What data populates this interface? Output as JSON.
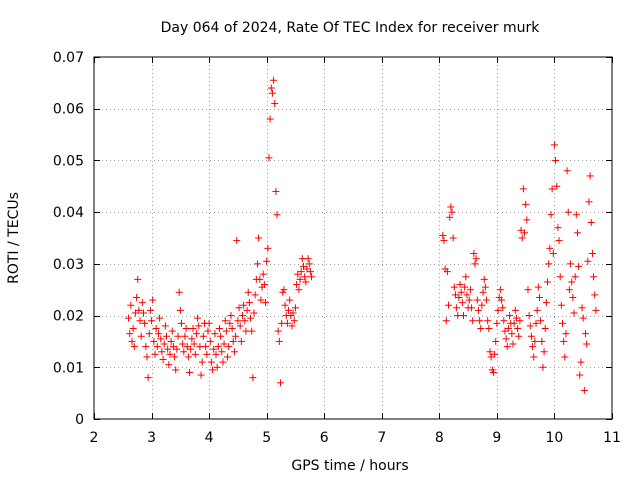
{
  "chart_data": {
    "type": "scatter",
    "title": "Day 064 of 2024, Rate Of TEC Index for receiver murk",
    "xlabel": "GPS time / hours",
    "ylabel": "ROTI / TECUs",
    "xlim": [
      2,
      11
    ],
    "ylim": [
      0,
      0.07
    ],
    "xticks": [
      2,
      3,
      4,
      5,
      6,
      7,
      8,
      9,
      10,
      11
    ],
    "xtick_labels": [
      "2",
      "3",
      "4",
      "5",
      "6",
      "7",
      "8",
      "9",
      "10",
      "11"
    ],
    "yticks": [
      0,
      0.01,
      0.02,
      0.03,
      0.04,
      0.05,
      0.06,
      0.07
    ],
    "ytick_labels": [
      "0",
      "0.01",
      "0.02",
      "0.03",
      "0.04",
      "0.05",
      "0.06",
      "0.07"
    ],
    "grid": true,
    "marker": "plus",
    "color": "#ff0000",
    "series": [
      {
        "name": "ROTI",
        "points": [
          [
            2.6,
            0.0195
          ],
          [
            2.62,
            0.0165
          ],
          [
            2.64,
            0.022
          ],
          [
            2.66,
            0.015
          ],
          [
            2.68,
            0.0175
          ],
          [
            2.7,
            0.014
          ],
          [
            2.72,
            0.0205
          ],
          [
            2.74,
            0.0235
          ],
          [
            2.76,
            0.027
          ],
          [
            2.78,
            0.021
          ],
          [
            2.8,
            0.019
          ],
          [
            2.82,
            0.016
          ],
          [
            2.84,
            0.0225
          ],
          [
            2.86,
            0.0205
          ],
          [
            2.88,
            0.0185
          ],
          [
            2.9,
            0.014
          ],
          [
            2.92,
            0.012
          ],
          [
            2.94,
            0.008
          ],
          [
            2.96,
            0.0165
          ],
          [
            2.98,
            0.021
          ],
          [
            3.0,
            0.019
          ],
          [
            3.02,
            0.023
          ],
          [
            3.04,
            0.015
          ],
          [
            3.06,
            0.0125
          ],
          [
            3.08,
            0.0175
          ],
          [
            3.1,
            0.014
          ],
          [
            3.12,
            0.0165
          ],
          [
            3.14,
            0.0195
          ],
          [
            3.16,
            0.0155
          ],
          [
            3.18,
            0.013
          ],
          [
            3.2,
            0.0115
          ],
          [
            3.22,
            0.0145
          ],
          [
            3.24,
            0.018
          ],
          [
            3.26,
            0.016
          ],
          [
            3.28,
            0.0135
          ],
          [
            3.3,
            0.0105
          ],
          [
            3.32,
            0.0125
          ],
          [
            3.34,
            0.015
          ],
          [
            3.36,
            0.017
          ],
          [
            3.38,
            0.014
          ],
          [
            3.4,
            0.012
          ],
          [
            3.42,
            0.0095
          ],
          [
            3.44,
            0.0135
          ],
          [
            3.46,
            0.016
          ],
          [
            3.48,
            0.0245
          ],
          [
            3.5,
            0.021
          ],
          [
            3.52,
            0.0185
          ],
          [
            3.54,
            0.0145
          ],
          [
            3.56,
            0.013
          ],
          [
            3.58,
            0.016
          ],
          [
            3.6,
            0.0175
          ],
          [
            3.62,
            0.014
          ],
          [
            3.64,
            0.012
          ],
          [
            3.66,
            0.009
          ],
          [
            3.68,
            0.0135
          ],
          [
            3.7,
            0.0155
          ],
          [
            3.72,
            0.0175
          ],
          [
            3.74,
            0.0145
          ],
          [
            3.76,
            0.0125
          ],
          [
            3.78,
            0.0165
          ],
          [
            3.8,
            0.0195
          ],
          [
            3.82,
            0.018
          ],
          [
            3.84,
            0.014
          ],
          [
            3.86,
            0.0085
          ],
          [
            3.88,
            0.011
          ],
          [
            3.9,
            0.016
          ],
          [
            3.92,
            0.0185
          ],
          [
            3.94,
            0.014
          ],
          [
            3.96,
            0.0125
          ],
          [
            3.98,
            0.017
          ],
          [
            4.0,
            0.0185
          ],
          [
            4.02,
            0.015
          ],
          [
            4.04,
            0.011
          ],
          [
            4.06,
            0.0095
          ],
          [
            4.08,
            0.0135
          ],
          [
            4.1,
            0.0165
          ],
          [
            4.12,
            0.0125
          ],
          [
            4.14,
            0.01
          ],
          [
            4.16,
            0.014
          ],
          [
            4.18,
            0.0175
          ],
          [
            4.2,
            0.016
          ],
          [
            4.22,
            0.013
          ],
          [
            4.24,
            0.011
          ],
          [
            4.26,
            0.0145
          ],
          [
            4.28,
            0.019
          ],
          [
            4.3,
            0.017
          ],
          [
            4.32,
            0.012
          ],
          [
            4.34,
            0.014
          ],
          [
            4.36,
            0.0185
          ],
          [
            4.38,
            0.02
          ],
          [
            4.4,
            0.0175
          ],
          [
            4.42,
            0.015
          ],
          [
            4.44,
            0.013
          ],
          [
            4.46,
            0.016
          ],
          [
            4.48,
            0.0345
          ],
          [
            4.5,
            0.019
          ],
          [
            4.52,
            0.0215
          ],
          [
            4.54,
            0.018
          ],
          [
            4.56,
            0.015
          ],
          [
            4.58,
            0.02
          ],
          [
            4.6,
            0.022
          ],
          [
            4.62,
            0.019
          ],
          [
            4.64,
            0.017
          ],
          [
            4.66,
            0.021
          ],
          [
            4.68,
            0.0245
          ],
          [
            4.7,
            0.0225
          ],
          [
            4.72,
            0.0195
          ],
          [
            4.74,
            0.017
          ],
          [
            4.76,
            0.008
          ],
          [
            4.78,
            0.0205
          ],
          [
            4.8,
            0.024
          ],
          [
            4.82,
            0.027
          ],
          [
            4.84,
            0.03
          ],
          [
            4.86,
            0.035
          ],
          [
            4.88,
            0.027
          ],
          [
            4.9,
            0.023
          ],
          [
            4.92,
            0.0255
          ],
          [
            4.94,
            0.028
          ],
          [
            4.96,
            0.026
          ],
          [
            4.98,
            0.0225
          ],
          [
            5.0,
            0.0305
          ],
          [
            5.02,
            0.033
          ],
          [
            5.04,
            0.0505
          ],
          [
            5.06,
            0.058
          ],
          [
            5.08,
            0.064
          ],
          [
            5.1,
            0.063
          ],
          [
            5.12,
            0.0655
          ],
          [
            5.14,
            0.061
          ],
          [
            5.16,
            0.044
          ],
          [
            5.18,
            0.0395
          ],
          [
            5.2,
            0.017
          ],
          [
            5.22,
            0.015
          ],
          [
            5.24,
            0.007
          ],
          [
            5.26,
            0.0185
          ],
          [
            5.28,
            0.0245
          ],
          [
            5.3,
            0.025
          ],
          [
            5.32,
            0.022
          ],
          [
            5.34,
            0.02
          ],
          [
            5.36,
            0.0185
          ],
          [
            5.38,
            0.021
          ],
          [
            5.4,
            0.023
          ],
          [
            5.42,
            0.02
          ],
          [
            5.44,
            0.018
          ],
          [
            5.46,
            0.0205
          ],
          [
            5.48,
            0.019
          ],
          [
            5.5,
            0.0215
          ],
          [
            5.52,
            0.026
          ],
          [
            5.54,
            0.028
          ],
          [
            5.56,
            0.025
          ],
          [
            5.58,
            0.027
          ],
          [
            5.6,
            0.0285
          ],
          [
            5.62,
            0.031
          ],
          [
            5.64,
            0.0295
          ],
          [
            5.66,
            0.0275
          ],
          [
            5.68,
            0.0265
          ],
          [
            5.7,
            0.029
          ],
          [
            5.72,
            0.031
          ],
          [
            5.74,
            0.03
          ],
          [
            5.76,
            0.0285
          ],
          [
            5.78,
            0.0275
          ],
          [
            8.06,
            0.0355
          ],
          [
            8.08,
            0.0345
          ],
          [
            8.1,
            0.029
          ],
          [
            8.12,
            0.019
          ],
          [
            8.14,
            0.0285
          ],
          [
            8.16,
            0.022
          ],
          [
            8.18,
            0.039
          ],
          [
            8.2,
            0.041
          ],
          [
            8.22,
            0.04
          ],
          [
            8.24,
            0.035
          ],
          [
            8.26,
            0.0255
          ],
          [
            8.28,
            0.024
          ],
          [
            8.3,
            0.0215
          ],
          [
            8.32,
            0.02
          ],
          [
            8.34,
            0.0235
          ],
          [
            8.36,
            0.026
          ],
          [
            8.38,
            0.0245
          ],
          [
            8.4,
            0.0225
          ],
          [
            8.42,
            0.02
          ],
          [
            8.44,
            0.0255
          ],
          [
            8.46,
            0.0275
          ],
          [
            8.48,
            0.024
          ],
          [
            8.5,
            0.0215
          ],
          [
            8.52,
            0.023
          ],
          [
            8.54,
            0.025
          ],
          [
            8.56,
            0.0215
          ],
          [
            8.58,
            0.019
          ],
          [
            8.6,
            0.032
          ],
          [
            8.62,
            0.03
          ],
          [
            8.64,
            0.031
          ],
          [
            8.66,
            0.023
          ],
          [
            8.68,
            0.021
          ],
          [
            8.7,
            0.019
          ],
          [
            8.72,
            0.0175
          ],
          [
            8.74,
            0.022
          ],
          [
            8.76,
            0.0245
          ],
          [
            8.78,
            0.027
          ],
          [
            8.8,
            0.0255
          ],
          [
            8.82,
            0.023
          ],
          [
            8.84,
            0.019
          ],
          [
            8.86,
            0.0175
          ],
          [
            8.88,
            0.013
          ],
          [
            8.9,
            0.012
          ],
          [
            8.92,
            0.0095
          ],
          [
            8.94,
            0.009
          ],
          [
            8.96,
            0.0125
          ],
          [
            8.98,
            0.015
          ],
          [
            9.0,
            0.0185
          ],
          [
            9.02,
            0.021
          ],
          [
            9.04,
            0.0235
          ],
          [
            9.06,
            0.025
          ],
          [
            9.08,
            0.023
          ],
          [
            9.1,
            0.0215
          ],
          [
            9.12,
            0.019
          ],
          [
            9.14,
            0.017
          ],
          [
            9.16,
            0.0155
          ],
          [
            9.18,
            0.014
          ],
          [
            9.2,
            0.0175
          ],
          [
            9.22,
            0.02
          ],
          [
            9.24,
            0.0185
          ],
          [
            9.26,
            0.0165
          ],
          [
            9.28,
            0.0145
          ],
          [
            9.3,
            0.0185
          ],
          [
            9.32,
            0.021
          ],
          [
            9.34,
            0.0195
          ],
          [
            9.36,
            0.0175
          ],
          [
            9.38,
            0.016
          ],
          [
            9.4,
            0.019
          ],
          [
            9.42,
            0.0365
          ],
          [
            9.44,
            0.035
          ],
          [
            9.46,
            0.0445
          ],
          [
            9.48,
            0.036
          ],
          [
            9.5,
            0.0415
          ],
          [
            9.52,
            0.0385
          ],
          [
            9.54,
            0.025
          ],
          [
            9.56,
            0.02
          ],
          [
            9.58,
            0.018
          ],
          [
            9.6,
            0.016
          ],
          [
            9.62,
            0.014
          ],
          [
            9.64,
            0.012
          ],
          [
            9.66,
            0.015
          ],
          [
            9.68,
            0.0185
          ],
          [
            9.7,
            0.021
          ],
          [
            9.72,
            0.0255
          ],
          [
            9.74,
            0.0235
          ],
          [
            9.76,
            0.019
          ],
          [
            9.78,
            0.015
          ],
          [
            9.8,
            0.01
          ],
          [
            9.82,
            0.013
          ],
          [
            9.84,
            0.0175
          ],
          [
            9.86,
            0.0225
          ],
          [
            9.88,
            0.0265
          ],
          [
            9.9,
            0.03
          ],
          [
            9.92,
            0.033
          ],
          [
            9.94,
            0.0395
          ],
          [
            9.96,
            0.0445
          ],
          [
            9.98,
            0.032
          ],
          [
            10.0,
            0.053
          ],
          [
            10.02,
            0.05
          ],
          [
            10.04,
            0.045
          ],
          [
            10.06,
            0.037
          ],
          [
            10.08,
            0.0345
          ],
          [
            10.1,
            0.0275
          ],
          [
            10.12,
            0.022
          ],
          [
            10.14,
            0.0185
          ],
          [
            10.16,
            0.015
          ],
          [
            10.18,
            0.012
          ],
          [
            10.2,
            0.0165
          ],
          [
            10.22,
            0.048
          ],
          [
            10.24,
            0.04
          ],
          [
            10.26,
            0.025
          ],
          [
            10.28,
            0.03
          ],
          [
            10.3,
            0.0265
          ],
          [
            10.32,
            0.0235
          ],
          [
            10.34,
            0.0205
          ],
          [
            10.36,
            0.0275
          ],
          [
            10.38,
            0.0395
          ],
          [
            10.4,
            0.036
          ],
          [
            10.42,
            0.0295
          ],
          [
            10.44,
            0.0085
          ],
          [
            10.46,
            0.011
          ],
          [
            10.48,
            0.0215
          ],
          [
            10.5,
            0.0195
          ],
          [
            10.52,
            0.0055
          ],
          [
            10.54,
            0.0165
          ],
          [
            10.56,
            0.0145
          ],
          [
            10.58,
            0.0305
          ],
          [
            10.6,
            0.042
          ],
          [
            10.62,
            0.047
          ],
          [
            10.64,
            0.038
          ],
          [
            10.66,
            0.032
          ],
          [
            10.68,
            0.0275
          ],
          [
            10.7,
            0.024
          ],
          [
            10.72,
            0.021
          ]
        ]
      }
    ]
  }
}
